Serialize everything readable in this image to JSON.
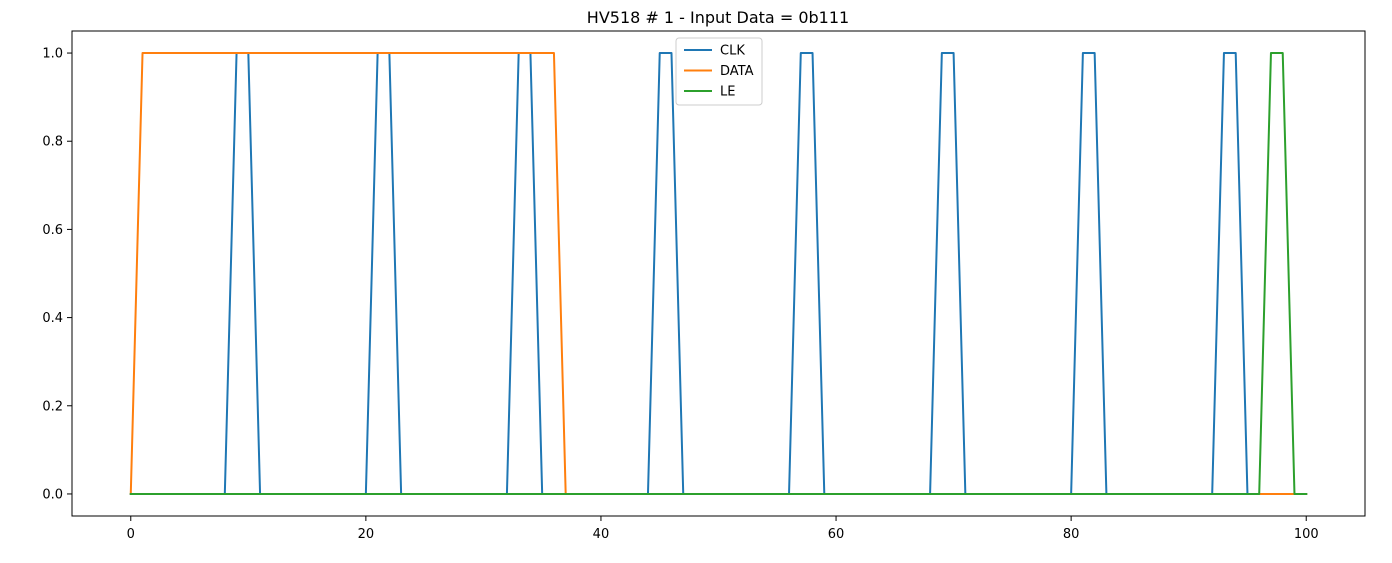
{
  "chart_data": {
    "type": "line",
    "title": "HV518 # 1 - Input Data = 0b111",
    "xlabel": "",
    "ylabel": "",
    "xlim": [
      -5,
      105
    ],
    "ylim": [
      -0.05,
      1.05
    ],
    "x_ticks": [
      0,
      20,
      40,
      60,
      80,
      100
    ],
    "x_tick_labels": [
      "0",
      "20",
      "40",
      "60",
      "80",
      "100"
    ],
    "y_ticks": [
      0.0,
      0.2,
      0.4,
      0.6,
      0.8,
      1.0
    ],
    "y_tick_labels": [
      "0.0",
      "0.2",
      "0.4",
      "0.6",
      "0.8",
      "1.0"
    ],
    "grid": false,
    "legend_position": "upper-center",
    "series": [
      {
        "name": "CLK",
        "color": "#1f77b4",
        "x": [
          0,
          8,
          9,
          10,
          11,
          20,
          21,
          22,
          23,
          32,
          33,
          34,
          35,
          44,
          45,
          46,
          47,
          56,
          57,
          58,
          59,
          68,
          69,
          70,
          71,
          80,
          81,
          82,
          83,
          92,
          93,
          94,
          95,
          100
        ],
        "y": [
          0,
          0,
          1,
          1,
          0,
          0,
          1,
          1,
          0,
          0,
          1,
          1,
          0,
          0,
          1,
          1,
          0,
          0,
          1,
          1,
          0,
          0,
          1,
          1,
          0,
          0,
          1,
          1,
          0,
          0,
          1,
          1,
          0,
          0
        ]
      },
      {
        "name": "DATA",
        "color": "#ff7f0e",
        "x": [
          0,
          1,
          36,
          37,
          100
        ],
        "y": [
          0,
          1,
          1,
          0,
          0
        ]
      },
      {
        "name": "LE",
        "color": "#2ca02c",
        "x": [
          0,
          96,
          97,
          98,
          99,
          100
        ],
        "y": [
          0,
          0,
          1,
          1,
          0,
          0
        ]
      }
    ]
  }
}
